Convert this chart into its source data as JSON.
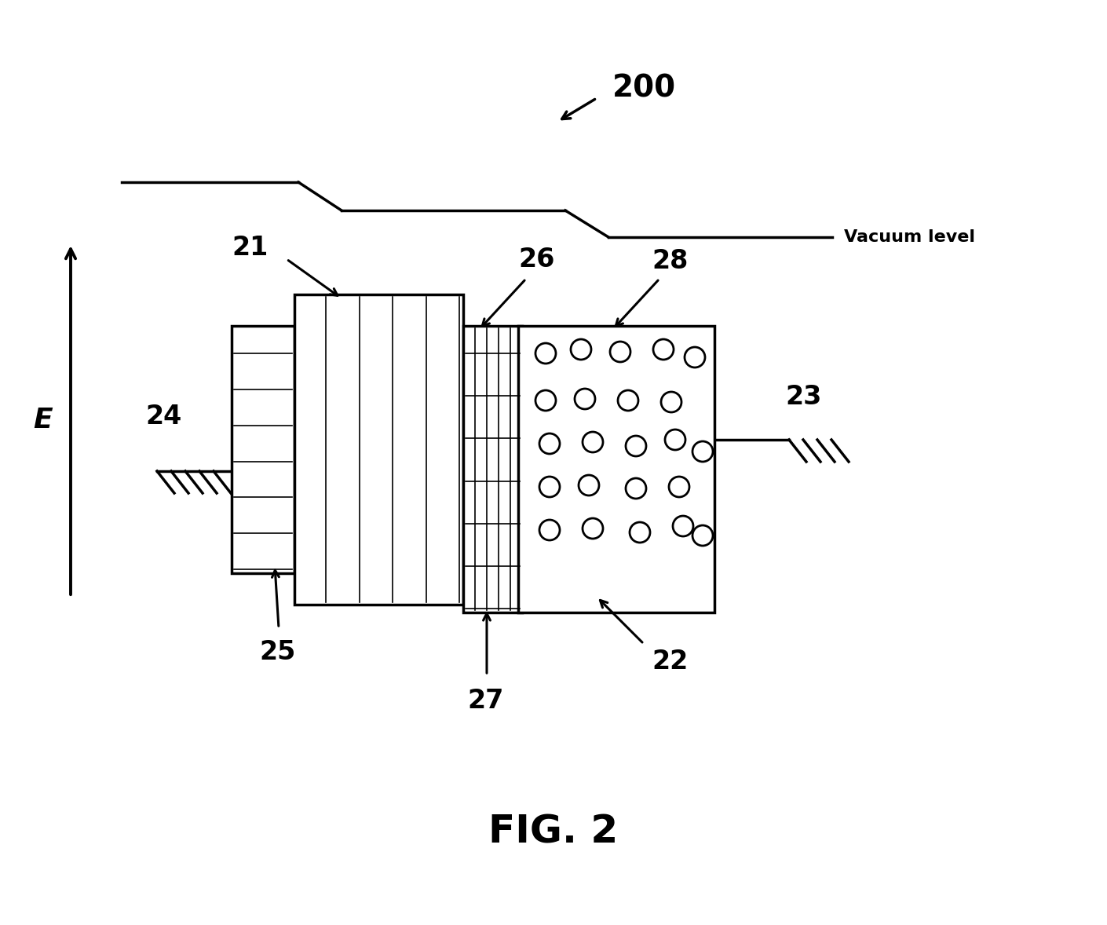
{
  "fig_width": 14.1,
  "fig_height": 11.78,
  "bg_color": "#ffffff",
  "title": "FIG. 2",
  "title_fontsize": 36,
  "label_200": "200",
  "label_21": "21",
  "label_22": "22",
  "label_23": "23",
  "label_24": "24",
  "label_25": "25",
  "label_26": "26",
  "label_27": "27",
  "label_28": "28",
  "vacuum_label": "Vacuum level",
  "E_label": "E",
  "linewidth": 2.5
}
